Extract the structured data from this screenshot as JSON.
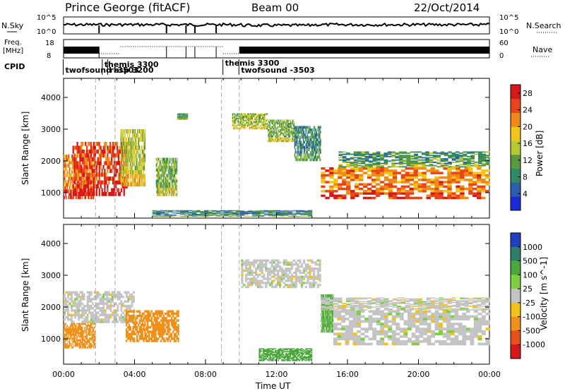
{
  "header": {
    "station": "Prince George (fitACF)",
    "beam": "Beam 00",
    "date": "22/Oct/2014"
  },
  "strip_labels": {
    "nsky": "N.Sky",
    "nsearch": "N.Search",
    "freq_line1": "Freq.",
    "freq_line2": "[MHz]",
    "nave": "Nave",
    "cpid": "CPID"
  },
  "strip_ticks": {
    "noise_top": "10^5",
    "noise_bottom": "10^0",
    "freq_top": "18",
    "freq_bottom": "8",
    "nave_top": "60",
    "nave_bottom": "0"
  },
  "cpid_labels": [
    {
      "text": "twofsound -3503",
      "time": 0.1
    },
    {
      "text": "themis 3300",
      "time": 2.3
    },
    {
      "text": "rbsp 3200",
      "time": 2.6
    },
    {
      "text": "themis 3300",
      "time": 9.1
    },
    {
      "text": "twofsound -3503",
      "time": 10.0
    }
  ],
  "chart_data": [
    {
      "type": "heatmap",
      "parameter": "Power",
      "ylabel": "Slant Range [km]",
      "xlabel": "",
      "xlim": [
        0,
        24
      ],
      "ylim": [
        200,
        4600
      ],
      "yticks": [
        "1000",
        "2000",
        "3000",
        "4000"
      ],
      "colorbar_label": "Power [dB]",
      "colorbar_ticks": [
        "4",
        "8",
        "12",
        "16",
        "20",
        "24",
        "28"
      ],
      "colorbar_range": [
        0,
        30
      ],
      "colorbar_colors": [
        "#1a2bd8",
        "#2a5fb0",
        "#2f8a66",
        "#5a9a3a",
        "#b6c832",
        "#f3c51a",
        "#f08a16",
        "#e8461a",
        "#d81818"
      ],
      "regions": [
        {
          "t0": 0.0,
          "t1": 1.8,
          "r0": 800,
          "r1": 2200,
          "v": 22
        },
        {
          "t0": 0.5,
          "t1": 3.6,
          "r0": 900,
          "r1": 2600,
          "v": 26
        },
        {
          "t0": 3.2,
          "t1": 4.6,
          "r0": 1200,
          "r1": 3000,
          "v": 15
        },
        {
          "t0": 5.2,
          "t1": 6.4,
          "r0": 900,
          "r1": 2100,
          "v": 12
        },
        {
          "t0": 6.4,
          "t1": 7.0,
          "r0": 3300,
          "r1": 3500,
          "v": 10
        },
        {
          "t0": 9.5,
          "t1": 11.5,
          "r0": 3000,
          "r1": 3500,
          "v": 14
        },
        {
          "t0": 11.5,
          "t1": 13.0,
          "r0": 2600,
          "r1": 3300,
          "v": 12
        },
        {
          "t0": 13.0,
          "t1": 14.5,
          "r0": 2000,
          "r1": 3100,
          "v": 8
        },
        {
          "t0": 14.5,
          "t1": 24.0,
          "r0": 800,
          "r1": 1800,
          "v": 22
        },
        {
          "t0": 15.5,
          "t1": 24.0,
          "r0": 1800,
          "r1": 2300,
          "v": 10
        },
        {
          "t0": 5.0,
          "t1": 14.0,
          "r0": 250,
          "r1": 450,
          "v": 8
        }
      ]
    },
    {
      "type": "heatmap",
      "parameter": "Velocity",
      "ylabel": "Slant Range [km]",
      "xlabel": "Time UT",
      "xlim": [
        0,
        24
      ],
      "ylim": [
        200,
        4600
      ],
      "xticks": [
        "00:00",
        "04:00",
        "08:00",
        "12:00",
        "16:00",
        "20:00",
        "00:00"
      ],
      "yticks": [
        "1000",
        "2000",
        "3000",
        "4000"
      ],
      "colorbar_label": "Velocity [m s^-1]",
      "colorbar_ticks": [
        "1000",
        "500",
        "100",
        "25",
        "-25",
        "-100",
        "-500",
        "-1000"
      ],
      "colorbar_colors": [
        "#1d3fc0",
        "#2e7f6a",
        "#4aa83a",
        "#7dd040",
        "#c4c4c4",
        "#f2c11a",
        "#f09018",
        "#e8501a",
        "#d81818"
      ],
      "regions": [
        {
          "t0": 0.0,
          "t1": 1.8,
          "r0": 700,
          "r1": 1500,
          "v": -300
        },
        {
          "t0": 0.0,
          "t1": 4.0,
          "r0": 1500,
          "r1": 2500,
          "v": 0
        },
        {
          "t0": 3.5,
          "t1": 6.5,
          "r0": 900,
          "r1": 1900,
          "v": -400
        },
        {
          "t0": 10.0,
          "t1": 14.5,
          "r0": 2600,
          "r1": 3500,
          "v": 0
        },
        {
          "t0": 14.5,
          "t1": 15.2,
          "r0": 1200,
          "r1": 2400,
          "v": 120
        },
        {
          "t0": 15.2,
          "t1": 24.0,
          "r0": 800,
          "r1": 1900,
          "v": 0
        },
        {
          "t0": 11.0,
          "t1": 14.0,
          "r0": 300,
          "r1": 700,
          "v": 300
        },
        {
          "t0": 14.5,
          "t1": 24.0,
          "r0": 1900,
          "r1": 2300,
          "v": 0
        }
      ]
    }
  ]
}
